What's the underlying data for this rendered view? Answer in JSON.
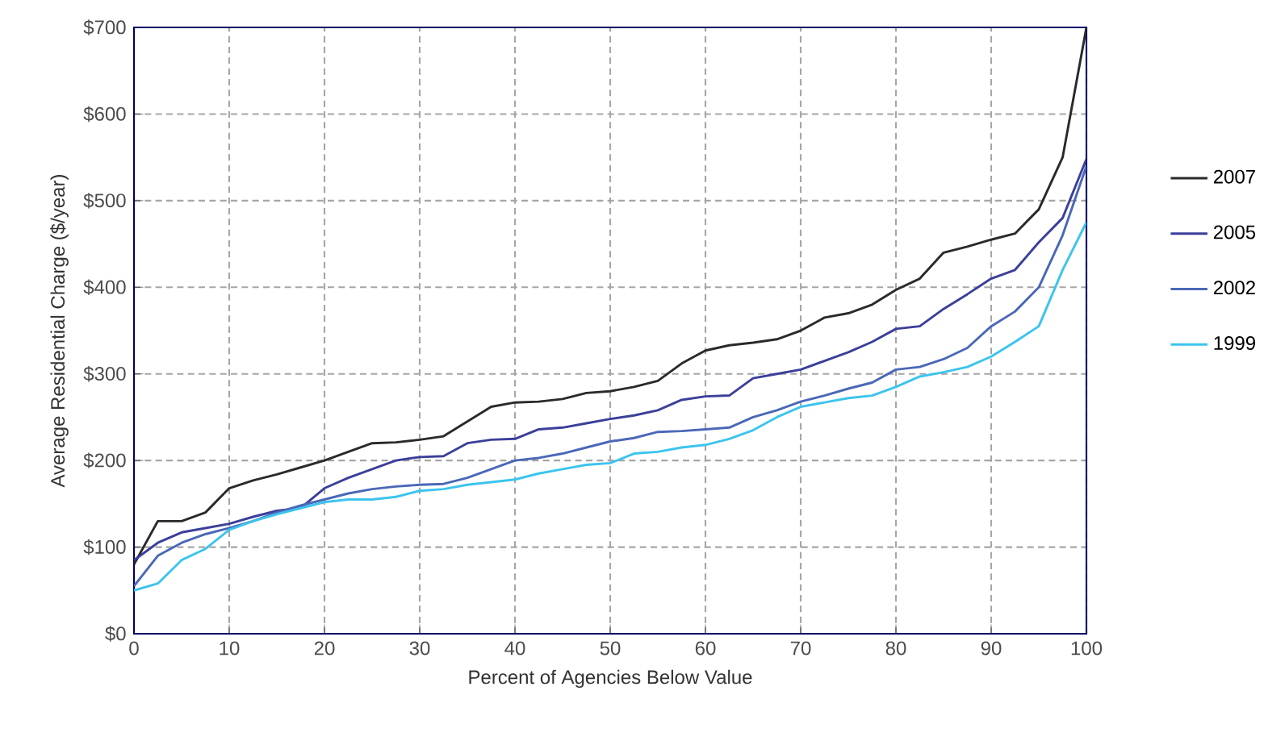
{
  "chart_data": {
    "type": "line",
    "xlabel": "Percent of Agencies Below Value",
    "ylabel": "Average Residential Charge ($/year)",
    "x": [
      0,
      2.5,
      5,
      7.5,
      10,
      12.5,
      15,
      17.5,
      20,
      22.5,
      25,
      27.5,
      30,
      32.5,
      35,
      37.5,
      40,
      42.5,
      45,
      47.5,
      50,
      52.5,
      55,
      57.5,
      60,
      62.5,
      65,
      67.5,
      70,
      72.5,
      75,
      77.5,
      80,
      82.5,
      85,
      87.5,
      90,
      92.5,
      95,
      97.5,
      100
    ],
    "series": [
      {
        "name": "2007",
        "color": "#2a2a2a",
        "values": [
          80,
          130,
          130,
          140,
          168,
          177,
          184,
          192,
          200,
          210,
          220,
          221,
          224,
          228,
          245,
          262,
          267,
          268,
          271,
          278,
          280,
          285,
          292,
          312,
          327,
          333,
          336,
          340,
          350,
          365,
          370,
          380,
          397,
          410,
          440,
          447,
          455,
          462,
          490,
          550,
          700
        ]
      },
      {
        "name": "2005",
        "color": "#3b3f9a",
        "values": [
          85,
          105,
          117,
          122,
          127,
          135,
          142,
          145,
          168,
          180,
          190,
          200,
          204,
          205,
          220,
          224,
          225,
          236,
          238,
          243,
          248,
          252,
          258,
          270,
          274,
          275,
          295,
          300,
          305,
          315,
          325,
          337,
          352,
          355,
          375,
          392,
          410,
          420,
          452,
          480,
          548
        ]
      },
      {
        "name": "2002",
        "color": "#4a68b8",
        "values": [
          55,
          90,
          105,
          115,
          122,
          130,
          140,
          148,
          155,
          162,
          167,
          170,
          172,
          173,
          180,
          190,
          200,
          203,
          208,
          215,
          222,
          226,
          233,
          234,
          236,
          238,
          250,
          258,
          268,
          275,
          283,
          290,
          305,
          308,
          317,
          330,
          355,
          372,
          400,
          460,
          540
        ]
      },
      {
        "name": "1999",
        "color": "#3cc4ee",
        "values": [
          50,
          58,
          85,
          98,
          120,
          130,
          138,
          145,
          152,
          155,
          155,
          158,
          165,
          167,
          172,
          175,
          178,
          185,
          190,
          195,
          197,
          208,
          210,
          215,
          218,
          225,
          235,
          250,
          262,
          267,
          272,
          275,
          285,
          297,
          302,
          308,
          320,
          337,
          355,
          420,
          475
        ]
      }
    ],
    "xlim": [
      0,
      100
    ],
    "xticks": [
      0,
      10,
      20,
      30,
      40,
      50,
      60,
      70,
      80,
      90,
      100
    ],
    "ylim": [
      0,
      700
    ],
    "yticks": [
      {
        "value": 0,
        "label": "$0"
      },
      {
        "value": 100,
        "label": "$100"
      },
      {
        "value": 200,
        "label": "$200"
      },
      {
        "value": 300,
        "label": "$300"
      },
      {
        "value": 400,
        "label": "$400"
      },
      {
        "value": 500,
        "label": "$500"
      },
      {
        "value": 600,
        "label": "$600"
      },
      {
        "value": 700,
        "label": "$700"
      }
    ],
    "grid": true,
    "legend": "right",
    "marker": "none",
    "line_style": "solid"
  }
}
